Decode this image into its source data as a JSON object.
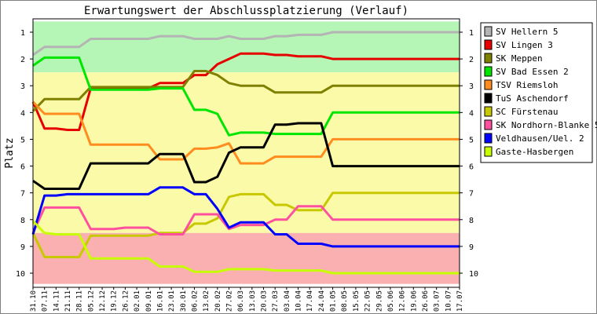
{
  "chart_data": {
    "type": "line",
    "title": "Erwartungswert der Abschlussplatzierung (Verlauf)",
    "xlabel": "",
    "ylabel": "Platz",
    "ylim": [
      1,
      10
    ],
    "y_inverted": true,
    "y_ticks": [
      "1",
      "2",
      "3",
      "4",
      "5",
      "6",
      "7",
      "8",
      "9",
      "10"
    ],
    "grid": false,
    "legend_position": "right",
    "zones": [
      {
        "from": 0.6,
        "to": 2.5,
        "color": "#b5f5b5"
      },
      {
        "from": 2.5,
        "to": 8.5,
        "color": "#fafaa8"
      },
      {
        "from": 8.5,
        "to": 10.4,
        "color": "#fab0b0"
      }
    ],
    "x": [
      "31.10",
      "07.11",
      "14.11",
      "21.11",
      "28.11",
      "05.12",
      "12.12",
      "19.12",
      "26.12",
      "02.01",
      "09.01",
      "16.01",
      "23.01",
      "30.01",
      "06.02",
      "13.02",
      "20.02",
      "27.02",
      "06.03",
      "13.03",
      "20.03",
      "27.03",
      "03.04",
      "10.04",
      "17.04",
      "24.04",
      "01.05",
      "08.05",
      "15.05",
      "22.05",
      "29.05",
      "05.06",
      "12.06",
      "19.06",
      "26.06",
      "03.07",
      "10.07",
      "17.07"
    ],
    "series": [
      {
        "name": "SV Hellern 5",
        "color": "#b4b4b4",
        "values": [
          1.85,
          1.55,
          1.55,
          1.55,
          1.55,
          1.25,
          1.25,
          1.25,
          1.25,
          1.25,
          1.25,
          1.15,
          1.15,
          1.15,
          1.25,
          1.25,
          1.25,
          1.15,
          1.25,
          1.25,
          1.25,
          1.15,
          1.15,
          1.1,
          1.1,
          1.1,
          1,
          1,
          1,
          1,
          1,
          1,
          1,
          1,
          1,
          1,
          1,
          1
        ]
      },
      {
        "name": "SV Lingen 3",
        "color": "#e60000",
        "values": [
          3.6,
          4.6,
          4.6,
          4.65,
          4.65,
          3.1,
          3.1,
          3.1,
          3.1,
          3.1,
          3.1,
          2.9,
          2.9,
          2.9,
          2.6,
          2.6,
          2.2,
          2.0,
          1.8,
          1.8,
          1.8,
          1.85,
          1.85,
          1.9,
          1.9,
          1.9,
          2,
          2,
          2,
          2,
          2,
          2,
          2,
          2,
          2,
          2,
          2,
          2
        ]
      },
      {
        "name": "SK Meppen",
        "color": "#808000",
        "values": [
          3.95,
          3.5,
          3.5,
          3.5,
          3.5,
          3.05,
          3.05,
          3.05,
          3.05,
          3.05,
          3.05,
          3.05,
          3.05,
          3.05,
          2.45,
          2.45,
          2.6,
          2.9,
          3.0,
          3.0,
          3.0,
          3.25,
          3.25,
          3.25,
          3.25,
          3.25,
          3,
          3,
          3,
          3,
          3,
          3,
          3,
          3,
          3,
          3,
          3,
          3
        ]
      },
      {
        "name": "SV Bad Essen 2",
        "color": "#00e600",
        "values": [
          2.25,
          1.95,
          1.95,
          1.95,
          1.95,
          3.15,
          3.15,
          3.15,
          3.15,
          3.15,
          3.15,
          3.1,
          3.1,
          3.1,
          3.9,
          3.9,
          4.05,
          4.85,
          4.75,
          4.75,
          4.75,
          4.8,
          4.8,
          4.8,
          4.8,
          4.8,
          4,
          4,
          4,
          4,
          4,
          4,
          4,
          4,
          4,
          4,
          4,
          4
        ]
      },
      {
        "name": "TSV Riemsloh",
        "color": "#ff8c1e",
        "values": [
          3.6,
          4.05,
          4.05,
          4.05,
          4.05,
          5.2,
          5.2,
          5.2,
          5.2,
          5.2,
          5.2,
          5.75,
          5.75,
          5.75,
          5.35,
          5.35,
          5.3,
          5.15,
          5.9,
          5.9,
          5.9,
          5.65,
          5.65,
          5.65,
          5.65,
          5.65,
          5,
          5,
          5,
          5,
          5,
          5,
          5,
          5,
          5,
          5,
          5,
          5
        ]
      },
      {
        "name": "TuS Aschendorf",
        "color": "#000000",
        "values": [
          6.55,
          6.85,
          6.85,
          6.85,
          6.85,
          5.9,
          5.9,
          5.9,
          5.9,
          5.9,
          5.9,
          5.55,
          5.55,
          5.55,
          6.6,
          6.6,
          6.4,
          5.5,
          5.3,
          5.3,
          5.3,
          4.45,
          4.45,
          4.4,
          4.4,
          4.4,
          6,
          6,
          6,
          6,
          6,
          6,
          6,
          6,
          6,
          6,
          6,
          6
        ]
      },
      {
        "name": "SC Fürstenau",
        "color": "#c8c800",
        "values": [
          8.5,
          9.4,
          9.4,
          9.4,
          9.4,
          8.6,
          8.6,
          8.6,
          8.6,
          8.6,
          8.6,
          8.5,
          8.5,
          8.5,
          8.15,
          8.15,
          7.95,
          7.15,
          7.05,
          7.05,
          7.05,
          7.45,
          7.45,
          7.65,
          7.65,
          7.65,
          7,
          7,
          7,
          7,
          7,
          7,
          7,
          7,
          7,
          7,
          7,
          7
        ]
      },
      {
        "name": "SK Nordhorn-Blanke 5",
        "color": "#ff50a0",
        "values": [
          8.5,
          7.55,
          7.55,
          7.55,
          7.55,
          8.35,
          8.35,
          8.35,
          8.3,
          8.3,
          8.3,
          8.55,
          8.55,
          8.55,
          7.8,
          7.8,
          7.8,
          8.35,
          8.2,
          8.2,
          8.2,
          8.0,
          8.0,
          7.5,
          7.5,
          7.5,
          8,
          8,
          8,
          8,
          8,
          8,
          8,
          8,
          8,
          8,
          8,
          8
        ]
      },
      {
        "name": "Veldhausen/Uel. 2",
        "color": "#0000ff",
        "values": [
          8.55,
          7.1,
          7.1,
          7.05,
          7.05,
          7.05,
          7.05,
          7.05,
          7.05,
          7.05,
          7.05,
          6.8,
          6.8,
          6.8,
          7.05,
          7.05,
          7.6,
          8.3,
          8.1,
          8.1,
          8.1,
          8.55,
          8.55,
          8.9,
          8.9,
          8.9,
          9,
          9,
          9,
          9,
          9,
          9,
          9,
          9,
          9,
          9,
          9,
          9
        ]
      },
      {
        "name": "Gaste-Hasbergen",
        "color": "#c8ff00",
        "values": [
          8.05,
          8.5,
          8.55,
          8.55,
          8.55,
          9.45,
          9.45,
          9.45,
          9.45,
          9.45,
          9.45,
          9.75,
          9.75,
          9.75,
          9.95,
          9.95,
          9.95,
          9.85,
          9.85,
          9.85,
          9.85,
          9.9,
          9.9,
          9.9,
          9.9,
          9.9,
          10,
          10,
          10,
          10,
          10,
          10,
          10,
          10,
          10,
          10,
          10,
          10
        ]
      }
    ]
  }
}
